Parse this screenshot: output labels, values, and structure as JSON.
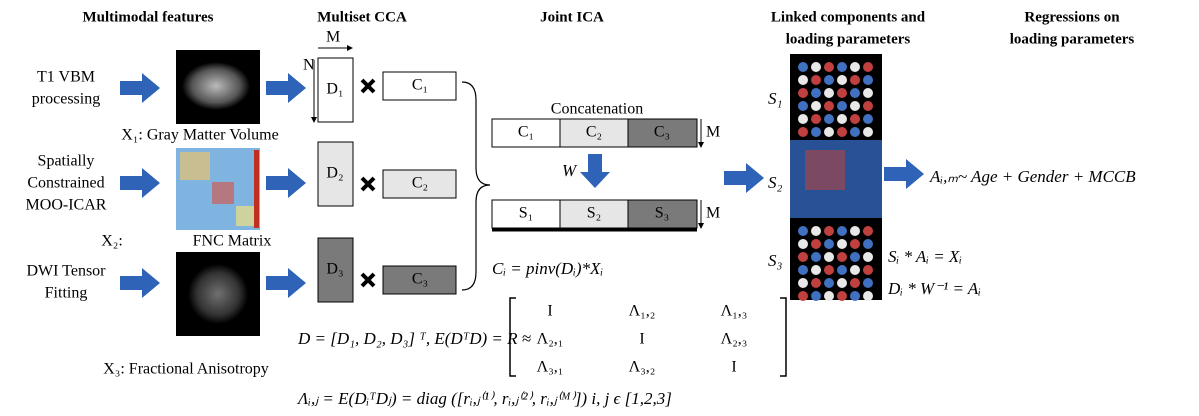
{
  "headers": {
    "features": "Multimodal features",
    "cca": "Multiset CCA",
    "ica": "Joint ICA",
    "linked": [
      "Linked components and",
      "loading parameters"
    ],
    "regressions": [
      "Regressions on",
      "loading parameters"
    ]
  },
  "inputs": [
    {
      "label": [
        "T1 VBM",
        "processing"
      ],
      "caption": "X₁: Gray Matter Volume"
    },
    {
      "label": [
        "Spatially",
        "Constrained",
        "MOO-ICAR"
      ],
      "caption_prefix": "X₂:",
      "caption": "FNC Matrix"
    },
    {
      "label": [
        "DWI Tensor",
        "Fitting"
      ],
      "caption": "X₃: Fractional Anisotropy"
    }
  ],
  "cca": {
    "m": "M",
    "n": "N",
    "d": [
      "D₁",
      "D₂",
      "D₃"
    ],
    "c": [
      "C₁",
      "C₂",
      "C₃"
    ]
  },
  "ica": {
    "concatenation": "Concatenation",
    "c": [
      "C₁",
      "C₂",
      "C₃"
    ],
    "m": "M",
    "w": "W",
    "s": [
      "S₁",
      "S₂",
      "S₃"
    ],
    "m2": "M",
    "formula": "Cᵢ = pinv(Dᵢ)*Xᵢ"
  },
  "components": {
    "s": [
      "S₁",
      "S₂",
      "S₃"
    ]
  },
  "regression": "Aᵢ,ₘ~ Age + Gender + MCCB",
  "relations": [
    "Sᵢ * Aᵢ =  Xᵢ",
    "Dᵢ * W⁻¹ =  Aᵢ"
  ],
  "bottom": {
    "lhs": "D = [D₁, D₂, D₃] ᵀ, E(DᵀD) = R ≈",
    "matrix": [
      [
        "I",
        "Λ₁,₂",
        "Λ₁,₃"
      ],
      [
        "Λ₂,₁",
        "I",
        "Λ₂,₃"
      ],
      [
        "Λ₃,₁",
        "Λ₃,₂",
        "I"
      ]
    ],
    "lambda": "Λᵢ,ⱼ = E(DᵢᵀDⱼ) = diag ([rᵢ,ⱼ⁽¹⁾, rᵢ,ⱼ⁽²⁾, rᵢ,ⱼ⁽ᴹ⁾])  i, j ϵ [1,2,3]"
  }
}
